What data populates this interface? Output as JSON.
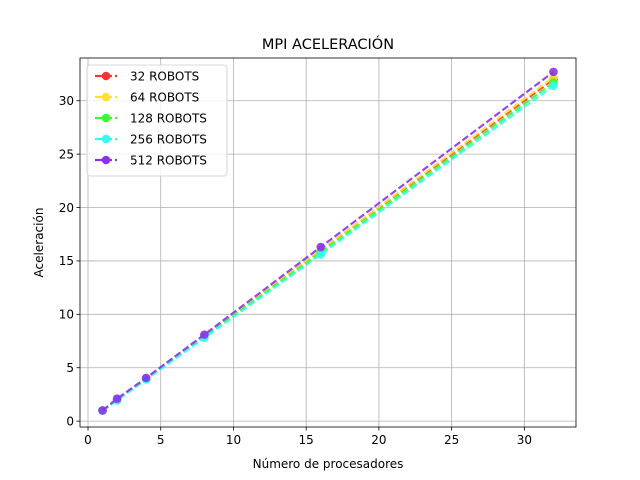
{
  "chart_data": {
    "type": "line",
    "title": "MPI ACELERACIÓN",
    "xlabel": "Número de procesadores",
    "ylabel": "Aceleración",
    "xlim": [
      -0.55,
      33.55
    ],
    "ylim": [
      -0.55,
      34.0
    ],
    "xticks": [
      0,
      5,
      10,
      15,
      20,
      25,
      30
    ],
    "yticks": [
      0,
      5,
      10,
      15,
      20,
      25,
      30
    ],
    "grid": true,
    "legend_position": "top-left",
    "line_style": "dashed",
    "marker": "circle",
    "x": [
      1,
      2,
      4,
      8,
      16,
      32
    ],
    "series": [
      {
        "name": "32 ROBOTS",
        "color": "#ff3333",
        "values": [
          1.0,
          2.0,
          4.0,
          8.0,
          16.0,
          32.0
        ]
      },
      {
        "name": "64 ROBOTS",
        "color": "#ffe135",
        "values": [
          1.0,
          2.0,
          4.0,
          8.0,
          16.0,
          32.2
        ]
      },
      {
        "name": "128 ROBOTS",
        "color": "#33ff33",
        "values": [
          1.0,
          2.0,
          3.95,
          7.9,
          15.8,
          31.7
        ]
      },
      {
        "name": "256 ROBOTS",
        "color": "#33ffee",
        "values": [
          1.0,
          1.95,
          3.9,
          7.8,
          15.6,
          31.4
        ]
      },
      {
        "name": "512 ROBOTS",
        "color": "#8a33ee",
        "values": [
          1.0,
          2.1,
          4.05,
          8.1,
          16.3,
          32.7
        ]
      }
    ]
  }
}
